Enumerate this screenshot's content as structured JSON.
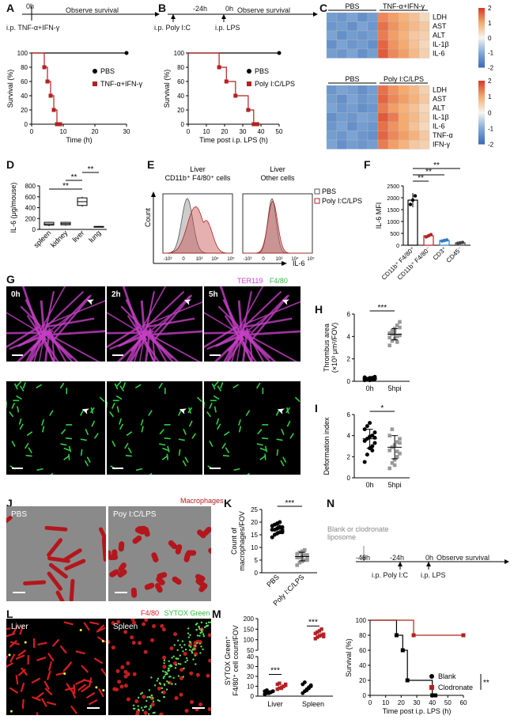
{
  "panels": {
    "A": {
      "label": "A",
      "timeline_time": "0h",
      "timeline_text": "Observe survival",
      "injection": "i.p. TNF-α+IFN-γ"
    },
    "B": {
      "label": "B",
      "t1": "-24h",
      "t2": "0h",
      "timeline_text": "Observe survival",
      "inj1": "i.p. Poly I:C",
      "inj2": "i.p. LPS"
    },
    "C": {
      "label": "C"
    },
    "D": {
      "label": "D"
    },
    "E": {
      "label": "E"
    },
    "F": {
      "label": "F"
    },
    "G": {
      "label": "G",
      "channel1": "TER119",
      "channel2": "F4/80",
      "times": [
        "0h",
        "2h",
        "5h"
      ]
    },
    "H": {
      "label": "H"
    },
    "I": {
      "label": "I"
    },
    "J": {
      "label": "J",
      "title": "Macrophages",
      "left": "PBS",
      "right": "Poy I:C/LPS"
    },
    "K": {
      "label": "K"
    },
    "L": {
      "label": "L",
      "ch1": "F4/80",
      "ch2": "SYTOX Green",
      "left": "Liver",
      "right": "Spleen"
    },
    "M": {
      "label": "M"
    },
    "N": {
      "label": "N",
      "pretreat": "Blank or clodronate liposome",
      "t0": "-48h",
      "t1": "-24h",
      "t2": "0h",
      "timeline_text": "Observe survival",
      "inj1": "i.p. Poly I:C",
      "inj2": "i.p. LPS"
    }
  },
  "chart_data": [
    {
      "id": "A_survival",
      "type": "line",
      "ylabel": "Survival (%)",
      "xlabel": "Time (h)",
      "xlim": [
        0,
        30
      ],
      "ylim": [
        0,
        100
      ],
      "xticks": [
        0,
        10,
        20,
        30
      ],
      "yticks": [
        0,
        20,
        40,
        60,
        80,
        100
      ],
      "series": [
        {
          "name": "PBS",
          "x": [
            0,
            30
          ],
          "y": [
            100,
            100
          ],
          "color": "#000000"
        },
        {
          "name": "TNF-α+IFN-γ",
          "x": [
            0,
            4,
            5,
            6,
            7,
            8,
            9
          ],
          "y": [
            100,
            80,
            60,
            40,
            20,
            0,
            0
          ],
          "color": "#b22222"
        }
      ],
      "legend": [
        "PBS",
        "TNF-α+IFN-γ"
      ]
    },
    {
      "id": "B_survival",
      "type": "line",
      "ylabel": "Survival (%)",
      "xlabel": "Time post i.p. LPS (h)",
      "xlim": [
        0,
        50
      ],
      "ylim": [
        0,
        100
      ],
      "xticks": [
        0,
        10,
        20,
        30,
        40,
        50
      ],
      "yticks": [
        0,
        20,
        40,
        60,
        80,
        100
      ],
      "series": [
        {
          "name": "PBS",
          "x": [
            0,
            50
          ],
          "y": [
            100,
            100
          ],
          "color": "#000000"
        },
        {
          "name": "Poly I:C/LPS",
          "x": [
            0,
            17,
            21,
            26,
            33,
            36,
            38
          ],
          "y": [
            100,
            80,
            60,
            40,
            20,
            0,
            0
          ],
          "color": "#b22222"
        }
      ],
      "legend": [
        "PBS",
        "Poly I:C/LPS"
      ]
    },
    {
      "id": "C_heatmap1",
      "type": "heatmap",
      "groups": [
        "PBS",
        "TNF-α+IFN-γ"
      ],
      "rows": [
        "LDH",
        "AST",
        "ALT",
        "IL-1β",
        "IL-6"
      ],
      "scale": [
        -2,
        2
      ],
      "scale_ticks": [
        2,
        1,
        0,
        -1,
        -2
      ],
      "values": [
        [
          -1.2,
          -1.3,
          -1.1,
          -1.4,
          -1.2,
          1.3,
          1.1,
          0.9,
          0.7,
          0.4
        ],
        [
          -1.3,
          -1.2,
          -1.4,
          -1.1,
          -1.3,
          1.5,
          1.2,
          1.0,
          0.8,
          0.6
        ],
        [
          -1.1,
          -1.4,
          -1.2,
          -1.3,
          -1.2,
          1.4,
          1.1,
          0.9,
          0.6,
          0.5
        ],
        [
          -1.4,
          -1.1,
          -1.3,
          -1.2,
          -1.4,
          1.6,
          1.2,
          1.0,
          0.7,
          0.4
        ],
        [
          -1.2,
          -1.3,
          -1.1,
          -1.4,
          -1.2,
          1.7,
          1.3,
          1.1,
          0.8,
          0.5
        ]
      ]
    },
    {
      "id": "C_heatmap2",
      "type": "heatmap",
      "groups": [
        "PBS",
        "Poly I:C/LPS"
      ],
      "rows": [
        "LDH",
        "AST",
        "ALT",
        "IL-1β",
        "IL-6",
        "TNF-α",
        "IFN-γ"
      ],
      "scale": [
        -2,
        2
      ],
      "scale_ticks": [
        2,
        1,
        0,
        -1,
        -2
      ],
      "values": [
        [
          -1.3,
          -1.1,
          -1.2,
          -1.4,
          -1.2,
          1.5,
          1.2,
          1.0,
          0.8,
          0.5
        ],
        [
          -1.2,
          -1.4,
          -1.1,
          -1.3,
          -1.2,
          1.6,
          1.3,
          1.1,
          0.9,
          0.6
        ],
        [
          -1.1,
          -1.3,
          -1.2,
          -1.4,
          -1.3,
          1.4,
          1.1,
          0.9,
          0.7,
          0.4
        ],
        [
          -1.4,
          -1.2,
          -1.3,
          -1.1,
          -1.2,
          1.7,
          1.4,
          1.0,
          0.8,
          0.5
        ],
        [
          -1.3,
          -1.1,
          -1.4,
          -1.2,
          -1.3,
          1.5,
          1.2,
          1.0,
          0.7,
          0.4
        ],
        [
          -1.2,
          -1.3,
          -1.1,
          -1.3,
          -1.4,
          1.6,
          1.3,
          1.1,
          0.9,
          0.6
        ],
        [
          -1.1,
          -1.4,
          -1.2,
          -1.3,
          -1.2,
          1.4,
          1.1,
          0.9,
          0.6,
          0.5
        ]
      ]
    },
    {
      "id": "D_il6",
      "type": "box",
      "ylabel": "IL-6 (μg/mouse)",
      "categories": [
        "spleen",
        "kidney",
        "liver",
        "lung"
      ],
      "ylim": [
        0,
        800
      ],
      "yticks": [
        0,
        200,
        400,
        600,
        800
      ],
      "boxes": [
        {
          "min": 60,
          "q1": 80,
          "med": 100,
          "q3": 130,
          "max": 140
        },
        {
          "min": 70,
          "q1": 85,
          "med": 105,
          "q3": 130,
          "max": 140
        },
        {
          "min": 420,
          "q1": 440,
          "med": 510,
          "q3": 580,
          "max": 600
        },
        {
          "min": 40,
          "q1": 45,
          "med": 50,
          "q3": 55,
          "max": 60
        }
      ],
      "significance": [
        {
          "a": 0,
          "b": 2,
          "text": "**"
        },
        {
          "a": 1,
          "b": 2,
          "text": "**"
        },
        {
          "a": 2,
          "b": 3,
          "text": "**"
        }
      ]
    },
    {
      "id": "E_flow",
      "type": "area",
      "panel_titles": [
        "Liver\nCD11b⁺ F4/80⁺ cells",
        "Liver\nOther cells"
      ],
      "ylabel": "Count",
      "xlabel": "IL-6",
      "xticks": [
        "-10³",
        "0",
        "10³",
        "10⁴",
        "10⁵"
      ],
      "legend": [
        "PBS",
        "Poly I:C/LPS"
      ]
    },
    {
      "id": "F_mfi",
      "type": "bar",
      "ylabel": "IL-6 MFI",
      "categories": [
        "CD11b⁺ F4/80⁺",
        "CD11b⁺ F4/80⁻",
        "CD3⁺",
        "CD45⁻"
      ],
      "values": [
        1900,
        400,
        200,
        100
      ],
      "errors": [
        300,
        80,
        40,
        30
      ],
      "ylim": [
        0,
        2500
      ],
      "yticks": [
        0,
        500,
        1000,
        1500,
        2000,
        2500
      ],
      "colors": [
        "#000000",
        "#b22222",
        "#2a7fbf",
        "#444444"
      ],
      "significance": [
        {
          "a": 0,
          "b": 1,
          "text": "**"
        },
        {
          "a": 0,
          "b": 2,
          "text": "**"
        },
        {
          "a": 0,
          "b": 3,
          "text": "**"
        }
      ]
    },
    {
      "id": "H_thrombus",
      "type": "scatter",
      "ylabel": "Thrombus area (×10³ μm²/FOV)",
      "categories": [
        "0h",
        "5hpi"
      ],
      "ylim": [
        0,
        6
      ],
      "yticks": [
        0,
        2,
        4,
        6
      ],
      "groups": [
        {
          "values": [
            0.1,
            0.2,
            0.3,
            0.15,
            0.25,
            0.35,
            0.2,
            0.1,
            0.3,
            0.4,
            0.2,
            0.15,
            0.25,
            0.3,
            0.2
          ],
          "mean": 0.25,
          "sd": 0.1
        },
        {
          "values": [
            3.2,
            3.6,
            3.8,
            4.0,
            4.1,
            4.3,
            4.5,
            4.7,
            5.0,
            5.3,
            3.9,
            4.2,
            4.4,
            3.5,
            4.8
          ],
          "mean": 4.2,
          "sd": 0.5
        }
      ],
      "significance": "***"
    },
    {
      "id": "I_deformation",
      "type": "scatter",
      "ylabel": "Deformation index",
      "categories": [
        "0h",
        "5hpi"
      ],
      "ylim": [
        0,
        6
      ],
      "yticks": [
        0,
        2,
        4,
        6
      ],
      "groups": [
        {
          "values": [
            1.5,
            2.2,
            2.8,
            3.0,
            3.3,
            3.5,
            3.7,
            3.9,
            4.0,
            4.3,
            4.6,
            4.9,
            5.2,
            2.6,
            3.8
          ],
          "mean": 3.7,
          "sd": 0.9
        },
        {
          "values": [
            0.9,
            1.4,
            1.7,
            2.0,
            2.3,
            2.6,
            2.9,
            3.1,
            3.4,
            3.7,
            4.0,
            4.6,
            1.2,
            2.5,
            3.3
          ],
          "mean": 2.9,
          "sd": 1.1
        }
      ],
      "significance": "*"
    },
    {
      "id": "K_count",
      "type": "scatter",
      "ylabel": "Count of macrophages/FOV",
      "categories": [
        "PBS",
        "Poly I:C/LPS"
      ],
      "ylim": [
        0,
        25
      ],
      "yticks": [
        0,
        5,
        10,
        15,
        20,
        25
      ],
      "groups": [
        {
          "values": [
            14,
            15,
            15.5,
            16,
            16.5,
            17,
            17,
            17.5,
            18,
            18,
            18.5,
            19,
            19.5,
            20,
            16
          ],
          "mean": 17.2,
          "sd": 1.6
        },
        {
          "values": [
            3,
            4,
            4.5,
            5,
            5.5,
            6,
            6,
            6.5,
            7,
            7,
            7.5,
            8,
            8.5,
            9,
            5
          ],
          "mean": 6.4,
          "sd": 1.7
        }
      ],
      "significance": "***"
    },
    {
      "id": "M_sytox",
      "type": "scatter",
      "ylabel": "SYTOX Green⁺ F4/80⁺ cell count/FOV",
      "categories": [
        "Liver",
        "Spleen"
      ],
      "ylim": [
        0,
        200
      ],
      "yticks": [
        0,
        10,
        20,
        30,
        40,
        50,
        100,
        150,
        200
      ],
      "groups": [
        {
          "name": "PBS liver",
          "values": [
            2,
            3,
            4,
            4,
            5,
            5,
            6,
            3,
            4,
            5
          ],
          "color": "#000000"
        },
        {
          "name": "Poly liver",
          "values": [
            7,
            8,
            9,
            10,
            11,
            12,
            13,
            8,
            10,
            12
          ],
          "color": "#b22222"
        },
        {
          "name": "PBS spleen",
          "values": [
            3,
            5,
            7,
            8,
            10,
            12,
            14,
            6,
            9,
            11
          ],
          "color": "#000000"
        },
        {
          "name": "Poly spleen",
          "values": [
            105,
            112,
            118,
            122,
            126,
            130,
            136,
            142,
            150,
            115
          ],
          "color": "#b22222"
        }
      ],
      "significance": [
        "***",
        "***"
      ]
    },
    {
      "id": "N_survival",
      "type": "line",
      "ylabel": "Survival (%)",
      "xlabel": "Time post i.p. LPS (h)",
      "xlim": [
        0,
        60
      ],
      "ylim": [
        0,
        100
      ],
      "xticks": [
        0,
        10,
        20,
        30,
        40,
        50,
        60
      ],
      "yticks": [
        0,
        20,
        40,
        60,
        80,
        100
      ],
      "series": [
        {
          "name": "Blank",
          "x": [
            0,
            17,
            21,
            24,
            28,
            40,
            42
          ],
          "y": [
            100,
            80,
            60,
            20,
            20,
            0,
            0
          ],
          "color": "#000000"
        },
        {
          "name": "Clodronate",
          "x": [
            0,
            28,
            60
          ],
          "y": [
            100,
            80,
            80
          ],
          "color": "#b22222"
        }
      ],
      "legend": [
        "Blank",
        "Clodronate"
      ],
      "significance": "**"
    }
  ]
}
